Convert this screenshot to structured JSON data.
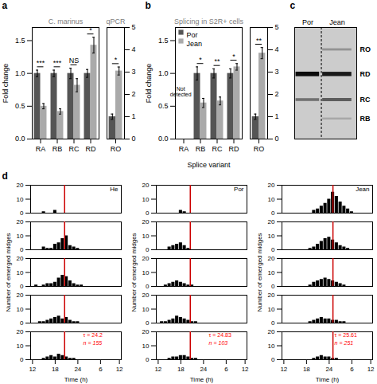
{
  "chart_data": [
    {
      "type": "bar",
      "panel": "a",
      "title": "C. marinus",
      "categories": [
        "RA",
        "RB",
        "RC",
        "RD"
      ],
      "series": [
        {
          "name": "Por",
          "color": "#555555",
          "values": [
            1.0,
            1.0,
            1.0,
            1.0
          ],
          "errors": [
            0.05,
            0.05,
            0.08,
            0.06
          ]
        },
        {
          "name": "Jean",
          "color": "#aaaaaa",
          "values": [
            0.5,
            0.42,
            0.82,
            1.43
          ],
          "errors": [
            0.04,
            0.04,
            0.1,
            0.12
          ]
        }
      ],
      "significance": [
        "***",
        "***",
        "NS",
        "*"
      ],
      "y_label": "Fold change",
      "ylim": [
        0,
        1.7
      ],
      "yticks": [
        {
          "value": 0,
          "label": "0.0"
        },
        0.5,
        {
          "value": 1.0,
          "label": "1.0"
        },
        1.5
      ]
    },
    {
      "type": "bar",
      "title": "qPCR",
      "categories": [
        "RO"
      ],
      "series": [
        {
          "name": "Por",
          "color": "#555555",
          "values": [
            1.0
          ],
          "errors": [
            0.12
          ]
        },
        {
          "name": "Jean",
          "color": "#aaaaaa",
          "values": [
            3.05
          ],
          "errors": [
            0.18
          ]
        }
      ],
      "significance": [
        "*"
      ],
      "ylim": [
        0,
        5
      ],
      "yticks": [
        0,
        1,
        2,
        3,
        4,
        5
      ]
    },
    {
      "type": "bar",
      "panel": "b",
      "title": "Splicing in S2R+ cells",
      "categories": [
        "RA",
        "RB",
        "RC",
        "RD"
      ],
      "series": [
        {
          "name": "Por",
          "color": "#555555",
          "values": [
            0.0,
            1.0,
            1.0,
            1.0
          ],
          "errors": [
            0.0,
            0.1,
            0.07,
            0.07
          ]
        },
        {
          "name": "Jean",
          "color": "#aaaaaa",
          "values": [
            0.0,
            0.55,
            0.58,
            1.1
          ],
          "errors": [
            0.0,
            0.07,
            0.06,
            0.05
          ]
        }
      ],
      "significance": [
        null,
        "*",
        "**",
        "*"
      ],
      "x_label": "Splice variant",
      "y_label": "Fold change",
      "ylim": [
        0,
        1.7
      ],
      "yticks": [
        {
          "value": 0,
          "label": "0.0"
        },
        0.5,
        {
          "value": 1.0,
          "label": "1.0"
        },
        1.5
      ],
      "legend": "upper left",
      "annotations": [
        "Not\ndetected"
      ]
    },
    {
      "type": "bar",
      "categories": [
        "RO"
      ],
      "series": [
        {
          "name": "Por",
          "color": "#555555",
          "values": [
            1.0
          ],
          "errors": [
            0.12
          ]
        },
        {
          "name": "Jean",
          "color": "#aaaaaa",
          "values": [
            3.85
          ],
          "errors": [
            0.25
          ]
        }
      ],
      "significance": [
        "**"
      ],
      "ylim": [
        0,
        5
      ],
      "yticks": [
        0,
        1,
        2,
        3,
        4,
        5
      ]
    },
    {
      "type": "gel",
      "panel": "c",
      "categories": [
        "RB",
        "RC",
        "RD",
        "RO"
      ],
      "y": [
        0.18,
        0.35,
        0.58,
        0.8
      ],
      "ylim": [
        0,
        1
      ],
      "tick_labels": false,
      "color": "#cccccc",
      "series": [
        {
          "name": "Por",
          "color": "#000000",
          "values": [
            0.0,
            0.45,
            0.95,
            0.0
          ]
        },
        {
          "name": "Jean",
          "color": "#000000",
          "values": [
            0.18,
            0.55,
            0.88,
            0.28
          ]
        }
      ]
    },
    {
      "type": "bar",
      "panel": "d",
      "title": "He",
      "color": "#000000",
      "categories": [
        "12",
        null,
        null,
        null,
        null,
        null,
        "18",
        null,
        null,
        null,
        null,
        null,
        "24",
        null,
        null,
        null,
        null,
        null,
        "6",
        null,
        null,
        null,
        null,
        "12"
      ],
      "series": [
        {
          "values": [
            0,
            0,
            0,
            1,
            0,
            0,
            2,
            0,
            0,
            0,
            0,
            0,
            0,
            0,
            0,
            0,
            0,
            0,
            0,
            0,
            0,
            0,
            0,
            0
          ]
        },
        {
          "values": [
            0,
            0,
            0,
            2,
            1,
            1,
            4,
            5,
            8,
            10,
            3,
            2,
            1,
            0,
            0,
            0,
            0,
            0,
            0,
            0,
            0,
            0,
            0,
            0
          ]
        },
        {
          "values": [
            0,
            1,
            0,
            1,
            2,
            2,
            3,
            6,
            8,
            7,
            4,
            2,
            1,
            1,
            0,
            0,
            0,
            0,
            0,
            0,
            0,
            0,
            0,
            0
          ]
        },
        {
          "values": [
            0,
            0,
            1,
            1,
            2,
            3,
            4,
            5,
            3,
            4,
            2,
            1,
            1,
            0,
            0,
            0,
            0,
            0,
            0,
            0,
            0,
            0,
            0,
            0
          ]
        },
        {
          "values": [
            0,
            0,
            0,
            1,
            2,
            3,
            2,
            4,
            3,
            2,
            1,
            1,
            0,
            0,
            0,
            0,
            0,
            0,
            0,
            0,
            0,
            0,
            0,
            0
          ]
        }
      ],
      "x_label": "Time (h)",
      "y_label": "Number of emerged midges",
      "ylim": [
        0,
        20
      ],
      "yticks": [
        0,
        10,
        20
      ],
      "lines": [
        {
          "x": 8.5,
          "color": "#cc0000"
        }
      ],
      "annotations": [
        {
          "text": "τ = 24.2",
          "color": "red"
        },
        {
          "text": "n = 155",
          "color": "red"
        }
      ]
    },
    {
      "type": "bar",
      "title": "Por",
      "color": "#000000",
      "categories": [
        "12",
        null,
        null,
        null,
        null,
        null,
        "18",
        null,
        null,
        null,
        null,
        null,
        "24",
        null,
        null,
        null,
        null,
        null,
        "6",
        null,
        null,
        null,
        null,
        "12"
      ],
      "series": [
        {
          "values": [
            0,
            0,
            0,
            0,
            0,
            0,
            2,
            1,
            0,
            0,
            0,
            0,
            0,
            0,
            0,
            0,
            0,
            0,
            0,
            0,
            0,
            0,
            0,
            0
          ]
        },
        {
          "values": [
            0,
            0,
            0,
            2,
            3,
            4,
            5,
            3,
            1,
            0,
            0,
            0,
            0,
            0,
            0,
            0,
            0,
            0,
            0,
            0,
            0,
            0,
            0,
            0
          ]
        },
        {
          "values": [
            0,
            0,
            1,
            2,
            3,
            4,
            3,
            2,
            1,
            1,
            0,
            0,
            0,
            0,
            0,
            0,
            0,
            0,
            0,
            0,
            0,
            0,
            0,
            0
          ]
        },
        {
          "values": [
            0,
            1,
            1,
            2,
            3,
            5,
            4,
            3,
            2,
            1,
            1,
            0,
            0,
            0,
            0,
            0,
            0,
            0,
            0,
            0,
            0,
            0,
            0,
            0
          ]
        },
        {
          "values": [
            0,
            0,
            0,
            1,
            2,
            2,
            3,
            3,
            2,
            1,
            1,
            0,
            0,
            0,
            0,
            0,
            0,
            0,
            0,
            0,
            0,
            0,
            0,
            0
          ]
        }
      ],
      "x_label": "Time (h)",
      "y_label": "Number of emerged midges",
      "ylim": [
        0,
        20
      ],
      "yticks": [
        0,
        10,
        20
      ],
      "lines": [
        {
          "x": 8.5,
          "color": "#cc0000"
        }
      ],
      "annotations": [
        {
          "text": "τ = 24.83",
          "color": "red"
        },
        {
          "text": "n = 103",
          "color": "red"
        }
      ]
    },
    {
      "type": "bar",
      "title": "Jean",
      "color": "#000000",
      "categories": [
        "12",
        null,
        null,
        null,
        null,
        null,
        "18",
        null,
        null,
        null,
        null,
        null,
        "24",
        null,
        null,
        null,
        null,
        null,
        "6",
        null,
        null,
        null,
        null,
        "12"
      ],
      "series": [
        {
          "values": [
            0,
            0,
            0,
            0,
            0,
            0,
            0,
            0,
            2,
            3,
            5,
            7,
            10,
            15,
            12,
            8,
            5,
            3,
            1,
            0,
            0,
            0,
            0,
            0
          ]
        },
        {
          "values": [
            0,
            0,
            0,
            0,
            0,
            0,
            0,
            1,
            2,
            4,
            6,
            8,
            9,
            7,
            5,
            3,
            2,
            1,
            0,
            0,
            0,
            0,
            0,
            0
          ]
        },
        {
          "values": [
            0,
            0,
            0,
            0,
            0,
            0,
            0,
            1,
            3,
            4,
            5,
            6,
            5,
            4,
            3,
            2,
            1,
            0,
            0,
            0,
            0,
            0,
            0,
            0
          ]
        },
        {
          "values": [
            0,
            0,
            0,
            0,
            0,
            0,
            0,
            1,
            2,
            3,
            4,
            3,
            3,
            2,
            2,
            1,
            1,
            0,
            0,
            0,
            0,
            0,
            0,
            0
          ]
        },
        {
          "values": [
            0,
            0,
            0,
            0,
            0,
            0,
            0,
            0,
            1,
            2,
            3,
            2,
            2,
            1,
            1,
            0,
            0,
            0,
            0,
            0,
            0,
            0,
            0,
            0
          ]
        }
      ],
      "x_label": "Time (h)",
      "y_label": "Number of emerged midges",
      "ylim": [
        0,
        20
      ],
      "yticks": [
        0,
        10,
        20
      ],
      "lines": [
        {
          "x": 13.0,
          "color": "#cc0000"
        }
      ],
      "annotations": [
        {
          "text": "τ = 25.61",
          "color": "red"
        },
        {
          "text": "n = 251",
          "color": "red"
        }
      ]
    }
  ]
}
